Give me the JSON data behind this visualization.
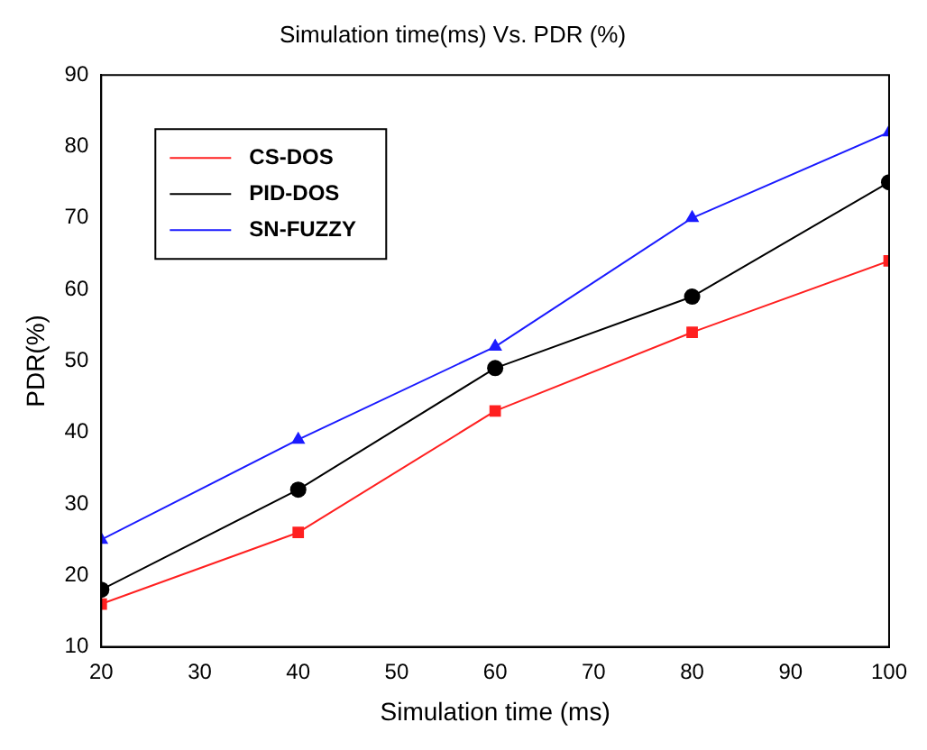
{
  "chart_data": {
    "type": "line",
    "title": "Simulation time(ms) Vs. PDR (%)",
    "xlabel": "Simulation time (ms)",
    "ylabel": "PDR(%)",
    "x": [
      20,
      40,
      60,
      80,
      100
    ],
    "series": [
      {
        "name": "CS-DOS",
        "color": "#ff2020",
        "marker": "square",
        "values": [
          16,
          26,
          43,
          54,
          64
        ]
      },
      {
        "name": "PID-DOS",
        "color": "#000000",
        "marker": "circle",
        "values": [
          18,
          32,
          49,
          59,
          75
        ]
      },
      {
        "name": "SN-FUZZY",
        "color": "#1a1aff",
        "marker": "triangle",
        "values": [
          25,
          39,
          52,
          70,
          82
        ]
      }
    ],
    "xlim": [
      20,
      100
    ],
    "xticks": [
      20,
      30,
      40,
      50,
      60,
      70,
      80,
      90,
      100
    ],
    "ylim": [
      10,
      90
    ],
    "yticks": [
      10,
      20,
      30,
      40,
      50,
      60,
      70,
      80,
      90
    ],
    "grid": false,
    "legend": "top left",
    "line_style": "solid"
  }
}
